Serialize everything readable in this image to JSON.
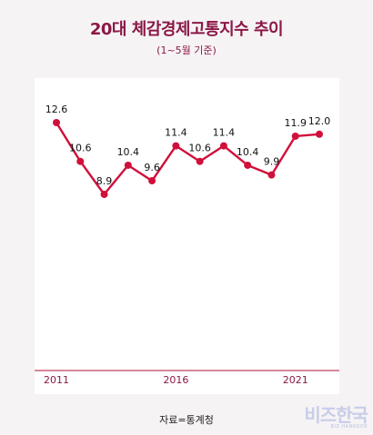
{
  "title": "20대 체감경제고통지수 추이",
  "subtitle": "(1~5월 기준)",
  "source": "자료=통계청",
  "brand": {
    "main": "비즈한국",
    "sub": "BIZ.HANKOOK"
  },
  "colors": {
    "line": "#d0103a",
    "text_accent": "#8a1845",
    "background": "#f6f3f5",
    "panel": "#ffffff"
  },
  "chart_data": {
    "type": "line",
    "x": [
      2011,
      2012,
      2013,
      2014,
      2015,
      2016,
      2017,
      2018,
      2019,
      2020,
      2021,
      2022
    ],
    "series": [
      {
        "values": [
          12.6,
          10.6,
          8.9,
          10.4,
          9.6,
          11.4,
          10.6,
          11.4,
          10.4,
          9.9,
          11.9,
          12.0
        ],
        "labels": [
          "12.6",
          "10.6",
          "8.9",
          "10.4",
          "9.6",
          "11.4",
          "10.6",
          "11.4",
          "10.4",
          "9.9",
          "11.9",
          "12.0"
        ]
      }
    ],
    "x_tick_labels": [
      {
        "x": 2011,
        "label": "2011"
      },
      {
        "x": 2016,
        "label": "2016"
      },
      {
        "x": 2021,
        "label": "2021"
      }
    ],
    "ylim": [
      4,
      13.5
    ],
    "grid": false,
    "legend": "none"
  }
}
